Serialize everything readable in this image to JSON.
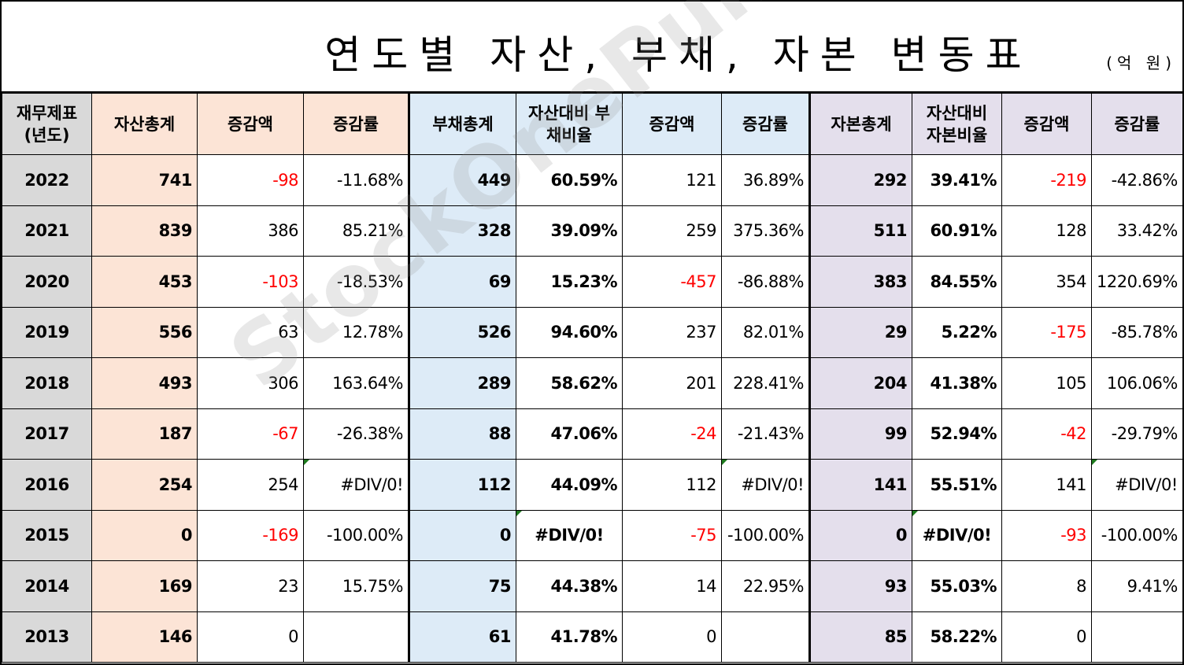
{
  "title": "연도별 자산, 부채, 자본 변동표",
  "unit": "(억 원)",
  "watermark": "StockOnePunch",
  "headers": {
    "year": "재무제표 (년도)",
    "asset_total": "자산총계",
    "asset_change": "증감액",
    "asset_rate": "증감률",
    "debt_total": "부채총계",
    "debt_ratio": "자산대비 부채비율",
    "debt_change": "증감액",
    "debt_rate": "증감률",
    "equity_total": "자본총계",
    "equity_ratio": "자산대비 자본비율",
    "equity_change": "증감액",
    "equity_rate": "증감률"
  },
  "colors": {
    "year_bg": "#d9d9d9",
    "asset_bg": "#fce4d6",
    "debt_bg": "#ddebf7",
    "equity_bg": "#e4dfec",
    "negative": "#ff0000"
  },
  "rows": [
    {
      "year": "2022",
      "asset_total": "741",
      "asset_change": "-98",
      "asset_rate": "-11.68%",
      "debt_total": "449",
      "debt_ratio": "60.59%",
      "debt_change": "121",
      "debt_rate": "36.89%",
      "equity_total": "292",
      "equity_ratio": "39.41%",
      "equity_change": "-219",
      "equity_rate": "-42.86%"
    },
    {
      "year": "2021",
      "asset_total": "839",
      "asset_change": "386",
      "asset_rate": "85.21%",
      "debt_total": "328",
      "debt_ratio": "39.09%",
      "debt_change": "259",
      "debt_rate": "375.36%",
      "equity_total": "511",
      "equity_ratio": "60.91%",
      "equity_change": "128",
      "equity_rate": "33.42%"
    },
    {
      "year": "2020",
      "asset_total": "453",
      "asset_change": "-103",
      "asset_rate": "-18.53%",
      "debt_total": "69",
      "debt_ratio": "15.23%",
      "debt_change": "-457",
      "debt_rate": "-86.88%",
      "equity_total": "383",
      "equity_ratio": "84.55%",
      "equity_change": "354",
      "equity_rate": "1220.69%"
    },
    {
      "year": "2019",
      "asset_total": "556",
      "asset_change": "63",
      "asset_rate": "12.78%",
      "debt_total": "526",
      "debt_ratio": "94.60%",
      "debt_change": "237",
      "debt_rate": "82.01%",
      "equity_total": "29",
      "equity_ratio": "5.22%",
      "equity_change": "-175",
      "equity_rate": "-85.78%"
    },
    {
      "year": "2018",
      "asset_total": "493",
      "asset_change": "306",
      "asset_rate": "163.64%",
      "debt_total": "289",
      "debt_ratio": "58.62%",
      "debt_change": "201",
      "debt_rate": "228.41%",
      "equity_total": "204",
      "equity_ratio": "41.38%",
      "equity_change": "105",
      "equity_rate": "106.06%"
    },
    {
      "year": "2017",
      "asset_total": "187",
      "asset_change": "-67",
      "asset_rate": "-26.38%",
      "debt_total": "88",
      "debt_ratio": "47.06%",
      "debt_change": "-24",
      "debt_rate": "-21.43%",
      "equity_total": "99",
      "equity_ratio": "52.94%",
      "equity_change": "-42",
      "equity_rate": "-29.79%"
    },
    {
      "year": "2016",
      "asset_total": "254",
      "asset_change": "254",
      "asset_rate": "#DIV/0!",
      "debt_total": "112",
      "debt_ratio": "44.09%",
      "debt_change": "112",
      "debt_rate": "#DIV/0!",
      "equity_total": "141",
      "equity_ratio": "55.51%",
      "equity_change": "141",
      "equity_rate": "#DIV/0!"
    },
    {
      "year": "2015",
      "asset_total": "0",
      "asset_change": "-169",
      "asset_rate": "-100.00%",
      "debt_total": "0",
      "debt_ratio": "#DIV/0!",
      "debt_change": "-75",
      "debt_rate": "-100.00%",
      "equity_total": "0",
      "equity_ratio": "#DIV/0!",
      "equity_change": "-93",
      "equity_rate": "-100.00%"
    },
    {
      "year": "2014",
      "asset_total": "169",
      "asset_change": "23",
      "asset_rate": "15.75%",
      "debt_total": "75",
      "debt_ratio": "44.38%",
      "debt_change": "14",
      "debt_rate": "22.95%",
      "equity_total": "93",
      "equity_ratio": "55.03%",
      "equity_change": "8",
      "equity_rate": "9.41%"
    },
    {
      "year": "2013",
      "asset_total": "146",
      "asset_change": "0",
      "asset_rate": "",
      "debt_total": "61",
      "debt_ratio": "41.78%",
      "debt_change": "0",
      "debt_rate": "",
      "equity_total": "85",
      "equity_ratio": "58.22%",
      "equity_change": "0",
      "equity_rate": ""
    }
  ]
}
